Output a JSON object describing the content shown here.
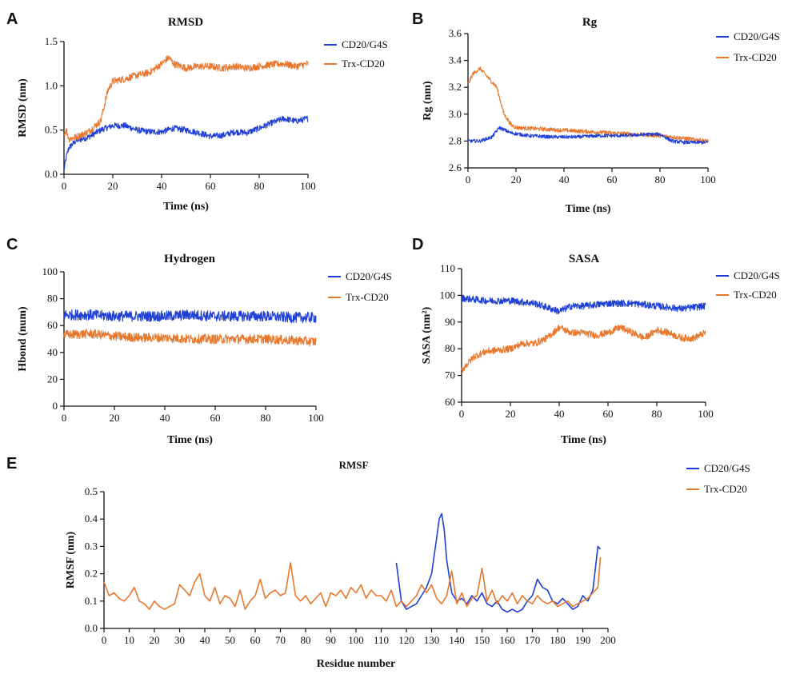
{
  "colors": {
    "blue": "#1f3fd6",
    "orange": "#e8772e",
    "axis": "#111111"
  },
  "panels": [
    {
      "id": "A",
      "title": "RMSD"
    },
    {
      "id": "B",
      "title": "Rg"
    },
    {
      "id": "C",
      "title": "Hydrogen"
    },
    {
      "id": "D",
      "title": "SASA"
    },
    {
      "id": "E",
      "title": "RMSF"
    }
  ],
  "chart_data": [
    {
      "panel": "A",
      "type": "line",
      "title": "RMSD",
      "xlabel": "Time (ns)",
      "ylabel": "RMSD (nm)",
      "xlim": [
        0,
        100
      ],
      "ylim": [
        0,
        1.5
      ],
      "xticks": [
        "0",
        "20",
        "40",
        "60",
        "80",
        "100"
      ],
      "yticks": [
        "0.0",
        "0.5",
        "1.0",
        "1.5"
      ],
      "legend_position": "right",
      "series": [
        {
          "name": "CD20/G4S",
          "color": "#1f3fd6",
          "noise": 0.035,
          "x": [
            0,
            1,
            2,
            5,
            10,
            15,
            20,
            25,
            30,
            35,
            40,
            45,
            50,
            55,
            60,
            65,
            70,
            75,
            80,
            85,
            90,
            95,
            100
          ],
          "y": [
            0.05,
            0.2,
            0.3,
            0.38,
            0.42,
            0.5,
            0.55,
            0.55,
            0.5,
            0.48,
            0.48,
            0.52,
            0.5,
            0.47,
            0.43,
            0.44,
            0.48,
            0.47,
            0.52,
            0.58,
            0.63,
            0.6,
            0.63
          ]
        },
        {
          "name": "Trx-CD20",
          "color": "#e8772e",
          "noise": 0.04,
          "x": [
            0,
            1,
            2,
            5,
            10,
            15,
            18,
            20,
            25,
            30,
            35,
            40,
            43,
            45,
            50,
            55,
            60,
            65,
            70,
            75,
            80,
            85,
            90,
            95,
            100
          ],
          "y": [
            0.45,
            0.5,
            0.4,
            0.42,
            0.48,
            0.6,
            0.95,
            1.05,
            1.08,
            1.12,
            1.15,
            1.25,
            1.32,
            1.25,
            1.2,
            1.22,
            1.22,
            1.2,
            1.22,
            1.2,
            1.22,
            1.24,
            1.25,
            1.22,
            1.25
          ]
        }
      ]
    },
    {
      "panel": "B",
      "type": "line",
      "title": "Rg",
      "xlabel": "Time (ns)",
      "ylabel": "Rg (nm)",
      "xlim": [
        0,
        100
      ],
      "ylim": [
        2.6,
        3.6
      ],
      "xticks": [
        "0",
        "20",
        "40",
        "60",
        "80",
        "100"
      ],
      "yticks": [
        "2.6",
        "2.8",
        "3.0",
        "3.2",
        "3.4",
        "3.6"
      ],
      "legend_position": "right",
      "series": [
        {
          "name": "Trx-CD20",
          "color": "#e8772e",
          "noise": 0.015,
          "x": [
            0,
            2,
            5,
            8,
            12,
            15,
            18,
            20,
            30,
            40,
            50,
            60,
            70,
            80,
            90,
            100
          ],
          "y": [
            3.22,
            3.3,
            3.34,
            3.28,
            3.2,
            3.0,
            2.92,
            2.9,
            2.89,
            2.88,
            2.87,
            2.86,
            2.85,
            2.84,
            2.82,
            2.8
          ]
        },
        {
          "name": "CD20/G4S",
          "color": "#1f3fd6",
          "noise": 0.013,
          "x": [
            0,
            5,
            10,
            13,
            18,
            25,
            35,
            45,
            55,
            65,
            75,
            80,
            85,
            90,
            100
          ],
          "y": [
            2.8,
            2.8,
            2.83,
            2.9,
            2.86,
            2.84,
            2.83,
            2.83,
            2.84,
            2.84,
            2.85,
            2.85,
            2.8,
            2.79,
            2.79
          ]
        }
      ]
    },
    {
      "panel": "C",
      "type": "line",
      "title": "Hydrogen",
      "xlabel": "Time (ns)",
      "ylabel": "Hbond (num)",
      "xlim": [
        0,
        100
      ],
      "ylim": [
        0,
        100
      ],
      "xticks": [
        "0",
        "20",
        "40",
        "60",
        "80",
        "100"
      ],
      "yticks": [
        "0",
        "20",
        "40",
        "60",
        "80",
        "100"
      ],
      "legend_position": "right",
      "series": [
        {
          "name": "CD20/G4S",
          "color": "#1f3fd6",
          "noise": 4.0,
          "x": [
            0,
            10,
            20,
            30,
            40,
            50,
            60,
            70,
            80,
            90,
            100
          ],
          "y": [
            68,
            68,
            67,
            67,
            67,
            68,
            67,
            67,
            67,
            66,
            66
          ]
        },
        {
          "name": "Trx-CD20",
          "color": "#e8772e",
          "noise": 3.5,
          "x": [
            0,
            10,
            20,
            30,
            40,
            50,
            60,
            70,
            80,
            90,
            100
          ],
          "y": [
            53,
            54,
            52,
            51,
            51,
            50,
            50,
            50,
            50,
            49,
            48
          ]
        }
      ]
    },
    {
      "panel": "D",
      "type": "line",
      "title": "SASA",
      "xlabel": "Time (ns)",
      "ylabel": "SASA (nm²)",
      "xlim": [
        0,
        100
      ],
      "ylim": [
        60,
        110
      ],
      "xticks": [
        "0",
        "20",
        "40",
        "60",
        "80",
        "100"
      ],
      "yticks": [
        "60",
        "70",
        "80",
        "90",
        "100",
        "110"
      ],
      "legend_position": "right",
      "series": [
        {
          "name": "CD20/G4S",
          "color": "#1f3fd6",
          "noise": 1.3,
          "x": [
            0,
            10,
            20,
            30,
            40,
            45,
            50,
            60,
            70,
            80,
            90,
            100
          ],
          "y": [
            99,
            98,
            98,
            97,
            94,
            96,
            96,
            97,
            97,
            96,
            95,
            96
          ]
        },
        {
          "name": "Trx-CD20",
          "color": "#e8772e",
          "noise": 1.3,
          "x": [
            0,
            5,
            10,
            20,
            25,
            30,
            35,
            40,
            45,
            50,
            55,
            60,
            65,
            70,
            75,
            80,
            85,
            90,
            95,
            100
          ],
          "y": [
            72,
            77,
            79,
            80,
            82,
            82,
            84,
            88,
            86,
            86,
            85,
            86,
            88,
            86,
            84,
            87,
            86,
            84,
            84,
            86
          ]
        }
      ]
    },
    {
      "panel": "E",
      "type": "line",
      "title": "RMSF",
      "xlabel": "Residue number",
      "ylabel": "RMSF (nm)",
      "xlim": [
        0,
        200
      ],
      "ylim": [
        0,
        0.5
      ],
      "xticks": [
        "0",
        "10",
        "20",
        "30",
        "40",
        "50",
        "60",
        "70",
        "80",
        "90",
        "100",
        "110",
        "120",
        "130",
        "140",
        "150",
        "160",
        "170",
        "180",
        "190",
        "200"
      ],
      "yticks": [
        "0.0",
        "0.1",
        "0.2",
        "0.3",
        "0.4",
        "0.5"
      ],
      "legend_position": "right",
      "series": [
        {
          "name": "CD20/G4S",
          "color": "#1f3fd6",
          "noise": 0,
          "x": [
            116,
            118,
            120,
            122,
            124,
            126,
            128,
            130,
            132,
            133,
            134,
            135,
            136,
            138,
            140,
            142,
            144,
            146,
            148,
            150,
            152,
            154,
            156,
            158,
            160,
            162,
            164,
            166,
            168,
            170,
            172,
            174,
            176,
            178,
            180,
            182,
            184,
            186,
            188,
            190,
            192,
            194,
            196,
            197
          ],
          "y": [
            0.24,
            0.1,
            0.07,
            0.08,
            0.09,
            0.12,
            0.15,
            0.2,
            0.33,
            0.4,
            0.42,
            0.36,
            0.25,
            0.13,
            0.1,
            0.11,
            0.09,
            0.12,
            0.1,
            0.13,
            0.09,
            0.08,
            0.1,
            0.07,
            0.06,
            0.07,
            0.06,
            0.07,
            0.1,
            0.12,
            0.18,
            0.15,
            0.14,
            0.1,
            0.09,
            0.11,
            0.09,
            0.07,
            0.08,
            0.12,
            0.1,
            0.14,
            0.3,
            0.29
          ]
        },
        {
          "name": "Trx-CD20",
          "color": "#e8772e",
          "noise": 0,
          "x": [
            0,
            2,
            4,
            6,
            8,
            10,
            12,
            14,
            16,
            18,
            20,
            22,
            24,
            26,
            28,
            30,
            32,
            34,
            36,
            38,
            40,
            42,
            44,
            46,
            48,
            50,
            52,
            54,
            56,
            58,
            60,
            62,
            64,
            66,
            68,
            70,
            72,
            74,
            76,
            78,
            80,
            82,
            84,
            86,
            88,
            90,
            92,
            94,
            96,
            98,
            100,
            102,
            104,
            106,
            108,
            110,
            112,
            114,
            116,
            118,
            120,
            122,
            124,
            126,
            128,
            130,
            132,
            134,
            136,
            138,
            140,
            142,
            144,
            146,
            148,
            150,
            152,
            154,
            156,
            158,
            160,
            162,
            164,
            166,
            168,
            170,
            172,
            174,
            176,
            178,
            180,
            182,
            184,
            186,
            188,
            190,
            192,
            194,
            196,
            197
          ],
          "y": [
            0.17,
            0.12,
            0.13,
            0.11,
            0.1,
            0.12,
            0.15,
            0.1,
            0.09,
            0.07,
            0.1,
            0.08,
            0.07,
            0.08,
            0.09,
            0.16,
            0.14,
            0.12,
            0.17,
            0.2,
            0.12,
            0.1,
            0.15,
            0.09,
            0.12,
            0.11,
            0.08,
            0.14,
            0.07,
            0.1,
            0.12,
            0.18,
            0.11,
            0.13,
            0.14,
            0.12,
            0.13,
            0.24,
            0.12,
            0.1,
            0.12,
            0.09,
            0.11,
            0.13,
            0.08,
            0.13,
            0.12,
            0.14,
            0.11,
            0.15,
            0.13,
            0.16,
            0.11,
            0.14,
            0.12,
            0.12,
            0.1,
            0.14,
            0.08,
            0.1,
            0.08,
            0.1,
            0.12,
            0.16,
            0.13,
            0.16,
            0.11,
            0.09,
            0.12,
            0.21,
            0.09,
            0.13,
            0.08,
            0.11,
            0.12,
            0.22,
            0.1,
            0.14,
            0.09,
            0.12,
            0.1,
            0.13,
            0.09,
            0.12,
            0.1,
            0.09,
            0.12,
            0.1,
            0.09,
            0.1,
            0.08,
            0.09,
            0.1,
            0.08,
            0.09,
            0.1,
            0.11,
            0.13,
            0.15,
            0.26
          ]
        }
      ]
    }
  ]
}
